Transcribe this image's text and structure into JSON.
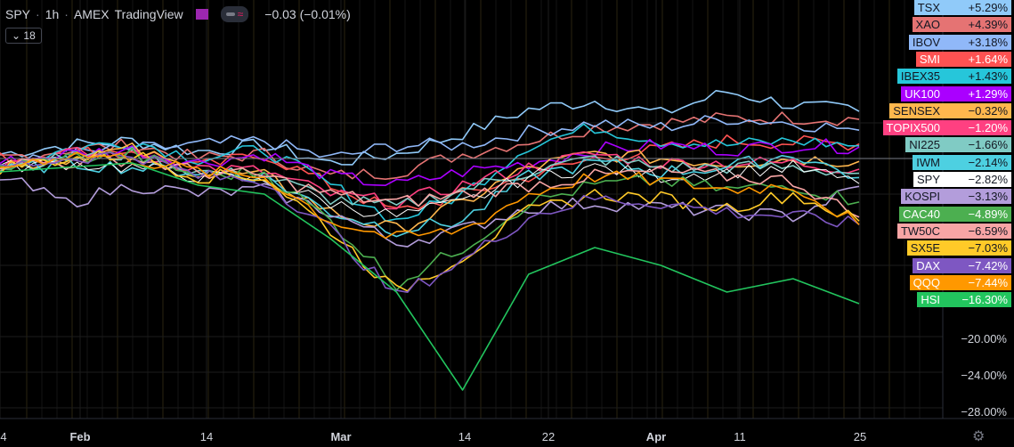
{
  "header": {
    "symbol": "SPY",
    "interval": "1h",
    "exchange": "AMEX",
    "source": "TradingView",
    "change": "−0.03 (−0.01%)",
    "indicator_count": "18"
  },
  "colors": {
    "background": "#000000",
    "grid": "#1c1c1c",
    "axis_text": "#d1d4dc"
  },
  "chart_data": {
    "type": "line",
    "title": "",
    "xlabel": "",
    "ylabel": "",
    "x_ticks": [
      "4",
      "Feb",
      "14",
      "Mar",
      "14",
      "22",
      "Apr",
      "11",
      "25"
    ],
    "y_ticks": [
      "−20.00%",
      "−24.00%",
      "−28.00%"
    ],
    "ylim": [
      -30,
      8
    ],
    "grid": true,
    "legend": "right axis labels",
    "series": [
      {
        "name": "TSX",
        "label": "+5.29%",
        "color": "#90caf9",
        "values": [
          0.5,
          1.5,
          2.0,
          0.8,
          1.5,
          -0.5,
          0.5,
          2.8,
          5.5,
          6.5,
          5.0,
          7.5,
          6.0,
          5.29
        ]
      },
      {
        "name": "XAO",
        "label": "+4.39%",
        "color": "#e57373",
        "values": [
          0.0,
          1.0,
          1.5,
          0.0,
          0.5,
          -2.0,
          -1.5,
          0.5,
          2.0,
          3.5,
          4.0,
          4.5,
          4.6,
          4.39
        ]
      },
      {
        "name": "IBOV",
        "label": "+3.18%",
        "color": "#90b8f8",
        "values": [
          -1.0,
          0.5,
          1.0,
          1.5,
          2.0,
          0.0,
          1.5,
          1.5,
          3.0,
          4.0,
          3.5,
          4.5,
          4.0,
          3.18
        ]
      },
      {
        "name": "SMI",
        "label": "+1.64%",
        "color": "#ff5252",
        "values": [
          0.0,
          0.5,
          1.0,
          -1.0,
          0.5,
          -3.0,
          -6.0,
          -4.0,
          -2.0,
          0.0,
          1.0,
          2.0,
          1.8,
          1.64
        ]
      },
      {
        "name": "IBEX35",
        "label": "+1.43%",
        "color": "#26c6da",
        "values": [
          -1.0,
          1.0,
          2.0,
          0.0,
          1.0,
          -3.0,
          -7.0,
          -4.0,
          1.5,
          3.5,
          2.0,
          1.5,
          2.0,
          1.43
        ]
      },
      {
        "name": "UK100",
        "label": "+1.29%",
        "color": "#aa00ff",
        "values": [
          -0.5,
          0.5,
          1.0,
          -0.5,
          0.5,
          -2.0,
          -3.0,
          -1.5,
          -0.5,
          1.0,
          1.5,
          1.0,
          1.5,
          1.29
        ]
      },
      {
        "name": "SENSEX",
        "label": "−0.32%",
        "color": "#ffb74d",
        "values": [
          -1.0,
          0.0,
          1.0,
          -1.5,
          -2.0,
          -6.0,
          -8.0,
          -5.0,
          -1.0,
          0.5,
          0.0,
          -0.5,
          0.0,
          -0.32
        ]
      },
      {
        "name": "TOPIX500",
        "label": "−1.20%",
        "color": "#ff4081",
        "values": [
          -0.5,
          0.5,
          0.5,
          -1.0,
          -1.5,
          -4.0,
          -5.0,
          -3.0,
          -1.0,
          0.5,
          -0.5,
          -0.5,
          -0.5,
          -1.2
        ]
      },
      {
        "name": "NI225",
        "label": "−1.66%",
        "color": "#80cbc4",
        "values": [
          -1.0,
          0.0,
          0.5,
          -1.5,
          -2.0,
          -4.5,
          -5.5,
          -3.5,
          -1.5,
          0.0,
          -1.0,
          -1.0,
          -1.0,
          -1.66
        ]
      },
      {
        "name": "IWM",
        "label": "−2.14%",
        "color": "#4dd0e1",
        "values": [
          -1.5,
          -0.5,
          -1.0,
          -1.5,
          -2.0,
          -6.0,
          -8.0,
          -7.0,
          -2.0,
          -0.5,
          -1.5,
          -1.0,
          0.5,
          -2.14
        ]
      },
      {
        "name": "SPY",
        "label": "−2.82%",
        "color": "#ffffff",
        "values": [
          -1.0,
          -0.5,
          -1.0,
          -2.0,
          -2.5,
          -5.0,
          -6.5,
          -5.0,
          -2.0,
          -1.0,
          -2.0,
          -1.5,
          -1.0,
          -2.82
        ]
      },
      {
        "name": "KOSPI",
        "label": "−3.13%",
        "color": "#b39ddb",
        "values": [
          -2.0,
          -5.0,
          -3.0,
          -4.0,
          -3.5,
          -6.0,
          -9.5,
          -8.0,
          -5.5,
          -5.0,
          -5.5,
          -6.0,
          -6.5,
          -3.13
        ]
      },
      {
        "name": "CAC40",
        "label": "−4.89%",
        "color": "#4caf50",
        "values": [
          -1.0,
          0.0,
          0.5,
          -2.0,
          -1.5,
          -7.0,
          -14.0,
          -10.0,
          -5.0,
          -3.0,
          -2.5,
          -3.5,
          -3.0,
          -4.89
        ]
      },
      {
        "name": "TW50C",
        "label": "−6.59%",
        "color": "#f8a5a5",
        "values": [
          -0.5,
          -0.5,
          0.0,
          -1.5,
          -2.0,
          -4.0,
          -5.0,
          -4.0,
          -3.0,
          -2.0,
          -1.5,
          -2.0,
          -2.5,
          -6.59
        ]
      },
      {
        "name": "SX5E",
        "label": "−7.03%",
        "color": "#ffca28",
        "values": [
          -1.0,
          0.0,
          0.5,
          -2.0,
          -2.0,
          -8.0,
          -15.0,
          -11.0,
          -6.0,
          -4.0,
          -4.5,
          -5.5,
          -4.0,
          -7.03
        ]
      },
      {
        "name": "DAX",
        "label": "−7.42%",
        "color": "#7e57c2",
        "values": [
          -1.0,
          0.0,
          0.5,
          -2.0,
          -2.5,
          -8.0,
          -15.5,
          -11.5,
          -6.5,
          -4.5,
          -5.0,
          -6.0,
          -6.5,
          -7.42
        ]
      },
      {
        "name": "QQQ",
        "label": "−7.44%",
        "color": "#ff9800",
        "values": [
          -1.0,
          0.5,
          0.0,
          -1.5,
          -2.0,
          -7.0,
          -9.0,
          -8.0,
          -4.0,
          -2.0,
          -2.5,
          -3.5,
          -3.0,
          -7.44
        ]
      },
      {
        "name": "HSI",
        "label": "−16.30%",
        "color": "#22c55e",
        "values": [
          -1.5,
          -1.0,
          -0.5,
          -3.0,
          -4.0,
          -9.0,
          -15.0,
          -26.0,
          -13.0,
          -10.0,
          -12.0,
          -15.0,
          -13.5,
          -16.3
        ]
      }
    ]
  }
}
